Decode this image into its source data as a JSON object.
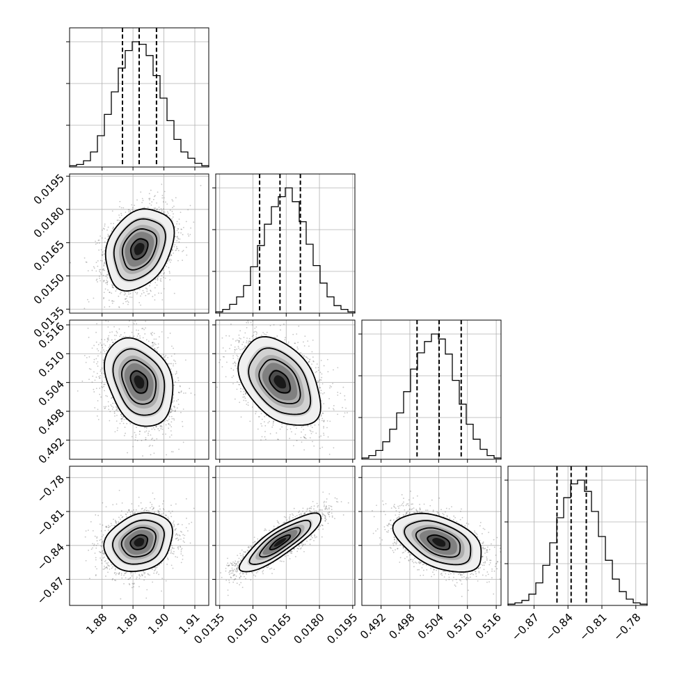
{
  "chart_data": {
    "type": "corner",
    "n_params": 4,
    "params": [
      {
        "median": 1.892,
        "q16": 1.8866,
        "q84": 1.8976,
        "range": [
          1.8695,
          1.9145
        ],
        "ticks": [
          1.88,
          1.89,
          1.9,
          1.91
        ],
        "tick_labels": [
          "1.88",
          "1.89",
          "1.90",
          "1.91"
        ],
        "hist_grid_y_fraction": [
          0.3,
          0.6,
          0.9
        ],
        "hist": [
          0.01,
          0.02,
          0.05,
          0.12,
          0.25,
          0.42,
          0.6,
          0.79,
          0.93,
          1.0,
          0.98,
          0.89,
          0.73,
          0.55,
          0.37,
          0.22,
          0.12,
          0.07,
          0.03,
          0.01
        ]
      },
      {
        "median": 0.01622,
        "q16": 0.0153,
        "q84": 0.01714,
        "range": [
          0.01332,
          0.0196
        ],
        "ticks": [
          0.0135,
          0.015,
          0.0165,
          0.018,
          0.0195
        ],
        "tick_labels": [
          "0.0135",
          "0.0150",
          "0.0165",
          "0.0180",
          "0.0195"
        ],
        "hist_grid_y_fraction": [
          0.3,
          0.6,
          0.9
        ],
        "hist": [
          0.01,
          0.03,
          0.07,
          0.13,
          0.22,
          0.37,
          0.54,
          0.71,
          0.85,
          0.93,
          1.0,
          0.89,
          0.73,
          0.55,
          0.38,
          0.24,
          0.13,
          0.06,
          0.03,
          0.01
        ]
      },
      {
        "median": 0.5041,
        "q16": 0.4995,
        "q84": 0.5087,
        "range": [
          0.488,
          0.517
        ],
        "ticks": [
          0.492,
          0.498,
          0.504,
          0.51,
          0.516
        ],
        "tick_labels": [
          "0.492",
          "0.498",
          "0.504",
          "0.510",
          "0.516"
        ],
        "hist_grid_y_fraction": [
          0.3,
          0.6,
          0.9
        ],
        "hist": [
          0.01,
          0.03,
          0.07,
          0.14,
          0.24,
          0.37,
          0.54,
          0.72,
          0.85,
          0.94,
          1.0,
          0.96,
          0.84,
          0.63,
          0.44,
          0.28,
          0.16,
          0.08,
          0.03,
          0.01
        ]
      },
      {
        "median": -0.8372,
        "q16": -0.8497,
        "q84": -0.8238,
        "range": [
          -0.893,
          -0.77
        ],
        "ticks": [
          -0.87,
          -0.84,
          -0.81,
          -0.78
        ],
        "tick_labels": [
          "−0.87",
          "−0.84",
          "−0.81",
          "−0.78"
        ],
        "hist_grid_y_fraction": [
          0.3,
          0.6,
          0.9
        ],
        "hist": [
          0.01,
          0.02,
          0.04,
          0.09,
          0.18,
          0.32,
          0.5,
          0.7,
          0.86,
          0.97,
          1.0,
          0.91,
          0.75,
          0.55,
          0.36,
          0.21,
          0.11,
          0.05,
          0.02,
          0.01
        ]
      }
    ],
    "correlations": [
      {
        "row": 1,
        "col": 0,
        "rho": 0.28
      },
      {
        "row": 2,
        "col": 0,
        "rho": -0.28
      },
      {
        "row": 2,
        "col": 1,
        "rho": -0.4
      },
      {
        "row": 3,
        "col": 0,
        "rho": 0.2
      },
      {
        "row": 3,
        "col": 1,
        "rho": 0.85
      },
      {
        "row": 3,
        "col": 2,
        "rho": -0.45
      }
    ],
    "contour_sigma_levels": [
      0.5,
      1.0,
      1.5,
      2.0
    ],
    "histogram_line_color": "#000000",
    "scatter_color": "#555555",
    "density_colormap": [
      "#ffffff",
      "#000000"
    ],
    "grid": true
  }
}
